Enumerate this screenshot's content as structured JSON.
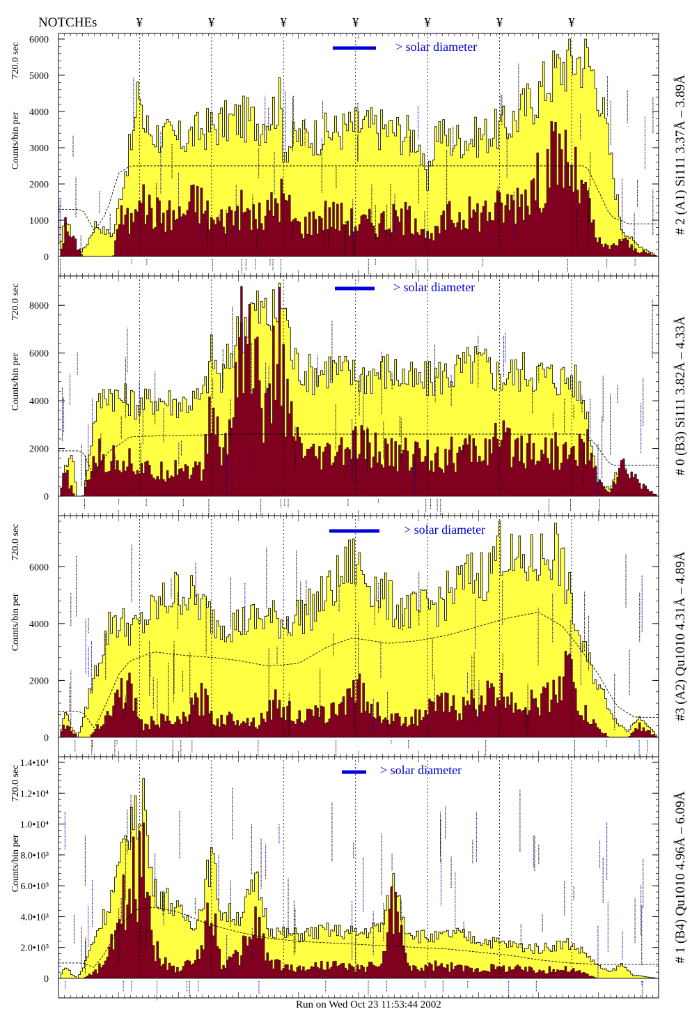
{
  "header": {
    "notches_label": "NOTCHEs",
    "notch_symbol": "¥"
  },
  "footer": {
    "run_text": "Run on Wed Oct 23 11:53:44 2002"
  },
  "colors": {
    "total_fill": "#ffff44",
    "lower_fill": "#800020",
    "legend_bar": "#0000dd",
    "legend_text": "#0000dd",
    "annotation_black": "#000000",
    "annotation_blue": "#0000aa",
    "annotation_purple": "#550055"
  },
  "chart_data": [
    {
      "type": "area",
      "ylabel": "Counts/bin per",
      "ylabel_time": "720.0 sec",
      "right_label": "# 2 (A1) Si111  3.37Å – 3.89Å",
      "legend_text": "> solar diameter",
      "ylim": [
        0,
        6000
      ],
      "yticks": [
        0,
        1000,
        2000,
        3000,
        4000,
        5000,
        6000
      ],
      "ytick_labels": [
        "0",
        "1000",
        "2000",
        "3000",
        "4000",
        "5000",
        "6000"
      ],
      "xlim": [
        0,
        1
      ],
      "notches": [
        0.135,
        0.255,
        0.375,
        0.495,
        0.615,
        0.735,
        0.855
      ],
      "series": [
        {
          "role": "total",
          "x": [
            0,
            0.01,
            0.02,
            0.03,
            0.045,
            0.06,
            0.075,
            0.09,
            0.11,
            0.125,
            0.135,
            0.14,
            0.16,
            0.2,
            0.24,
            0.26,
            0.3,
            0.34,
            0.37,
            0.375,
            0.4,
            0.45,
            0.5,
            0.55,
            0.6,
            0.615,
            0.63,
            0.65,
            0.7,
            0.75,
            0.8,
            0.83,
            0.85,
            0.88,
            0.9,
            0.92,
            0.94,
            0.96,
            0.98,
            1
          ],
          "y": [
            0,
            1100,
            600,
            0,
            300,
            900,
            700,
            600,
            2400,
            3400,
            4900,
            3600,
            3400,
            3200,
            3500,
            3600,
            3800,
            3700,
            4300,
            3000,
            3300,
            3400,
            3600,
            3500,
            3300,
            1800,
            3600,
            3200,
            3300,
            3600,
            4500,
            5100,
            5400,
            5500,
            4800,
            2900,
            800,
            400,
            200,
            0
          ]
        },
        {
          "role": "lower",
          "x": [
            0,
            0.01,
            0.025,
            0.04,
            0.06,
            0.08,
            0.09,
            0.1,
            0.12,
            0.135,
            0.14,
            0.16,
            0.2,
            0.23,
            0.26,
            0.3,
            0.34,
            0.37,
            0.4,
            0.45,
            0.5,
            0.55,
            0.6,
            0.62,
            0.65,
            0.7,
            0.75,
            0.78,
            0.8,
            0.82,
            0.84,
            0.86,
            0.88,
            0.9,
            0.92,
            0.94,
            0.96,
            1
          ],
          "y": [
            0,
            800,
            400,
            0,
            0,
            0,
            0,
            1100,
            900,
            2400,
            1400,
            1200,
            1100,
            1600,
            900,
            1300,
            1000,
            1700,
            800,
            1200,
            900,
            1000,
            1100,
            400,
            1100,
            1200,
            1400,
            1800,
            2000,
            2600,
            2900,
            2200,
            1600,
            400,
            200,
            500,
            200,
            0
          ]
        },
        {
          "role": "reference",
          "x": [
            0,
            0.02,
            0.04,
            0.06,
            0.08,
            0.1,
            0.12,
            0.14,
            0.3,
            0.5,
            0.7,
            0.84,
            0.88,
            0.9,
            0.92,
            0.95,
            0.98,
            1
          ],
          "y": [
            1300,
            1300,
            1300,
            700,
            1200,
            2300,
            2500,
            2500,
            2500,
            2500,
            2500,
            2500,
            2500,
            1800,
            1100,
            900,
            900,
            900
          ]
        }
      ]
    },
    {
      "type": "area",
      "ylabel": "Counts/bin per",
      "ylabel_time": "720.0 sec",
      "right_label": "# 0 (B3) Si111  3.82Å – 4.33Å",
      "legend_text": "> solar diameter",
      "ylim": [
        0,
        9000
      ],
      "yticks": [
        0,
        2000,
        4000,
        6000,
        8000
      ],
      "ytick_labels": [
        "0",
        "2000",
        "4000",
        "6000",
        "8000"
      ],
      "xlim": [
        0,
        1
      ],
      "notches": [
        0.135,
        0.255,
        0.375,
        0.495,
        0.615,
        0.735,
        0.855
      ],
      "series": [
        {
          "role": "total",
          "x": [
            0,
            0.01,
            0.02,
            0.03,
            0.04,
            0.06,
            0.08,
            0.1,
            0.12,
            0.135,
            0.16,
            0.2,
            0.24,
            0.255,
            0.27,
            0.3,
            0.32,
            0.36,
            0.375,
            0.39,
            0.42,
            0.45,
            0.5,
            0.55,
            0.6,
            0.63,
            0.66,
            0.7,
            0.74,
            0.78,
            0.82,
            0.86,
            0.88,
            0.9,
            0.92,
            0.94,
            0.96,
            1
          ],
          "y": [
            0,
            1200,
            2000,
            0,
            0,
            3500,
            4500,
            4100,
            4000,
            3800,
            4100,
            3900,
            4100,
            6000,
            4700,
            6900,
            7800,
            7500,
            8400,
            5700,
            5100,
            5400,
            5000,
            5300,
            4700,
            5000,
            5200,
            5600,
            5000,
            5300,
            5000,
            4900,
            3800,
            500,
            300,
            1500,
            200,
            0
          ]
        },
        {
          "role": "lower",
          "x": [
            0,
            0.01,
            0.025,
            0.04,
            0.06,
            0.08,
            0.1,
            0.12,
            0.135,
            0.16,
            0.2,
            0.24,
            0.255,
            0.27,
            0.29,
            0.3,
            0.32,
            0.35,
            0.36,
            0.37,
            0.38,
            0.4,
            0.42,
            0.45,
            0.5,
            0.55,
            0.6,
            0.65,
            0.7,
            0.74,
            0.8,
            0.84,
            0.86,
            0.88,
            0.9,
            0.92,
            0.94,
            1
          ],
          "y": [
            0,
            1000,
            0,
            0,
            1800,
            1400,
            1600,
            1500,
            1200,
            900,
            1300,
            1000,
            4000,
            1500,
            3200,
            7700,
            6000,
            3000,
            5500,
            6800,
            3500,
            2000,
            1500,
            1600,
            2100,
            1700,
            1800,
            1700,
            1900,
            2200,
            2000,
            1800,
            1700,
            2300,
            600,
            200,
            1200,
            0
          ]
        },
        {
          "role": "reference",
          "x": [
            0,
            0.02,
            0.04,
            0.06,
            0.08,
            0.12,
            0.3,
            0.5,
            0.7,
            0.86,
            0.88,
            0.9,
            0.92,
            0.95,
            1
          ],
          "y": [
            1900,
            1900,
            1900,
            800,
            1800,
            2500,
            2600,
            2600,
            2600,
            2600,
            2600,
            2000,
            1300,
            1300,
            1300
          ]
        }
      ]
    },
    {
      "type": "area",
      "ylabel": "Counts/bin per",
      "ylabel_time": "720.0 sec",
      "right_label": "#3 (A2) Qu1010  4.31Å – 4.89Å",
      "legend_text": "> solar diameter",
      "ylim": [
        0,
        7600
      ],
      "yticks": [
        0,
        2000,
        4000,
        6000
      ],
      "ytick_labels": [
        "0",
        "2000",
        "4000",
        "6000"
      ],
      "xlim": [
        0,
        1
      ],
      "notches": [
        0.135,
        0.255,
        0.375,
        0.495,
        0.615,
        0.735,
        0.855
      ],
      "series": [
        {
          "role": "total",
          "x": [
            0,
            0.01,
            0.02,
            0.03,
            0.04,
            0.05,
            0.07,
            0.09,
            0.1,
            0.13,
            0.16,
            0.2,
            0.23,
            0.26,
            0.3,
            0.34,
            0.38,
            0.42,
            0.46,
            0.49,
            0.52,
            0.56,
            0.6,
            0.64,
            0.68,
            0.72,
            0.735,
            0.76,
            0.8,
            0.83,
            0.85,
            0.87,
            0.9,
            0.93,
            0.95,
            0.97,
            1
          ],
          "y": [
            0,
            900,
            400,
            0,
            600,
            1500,
            3000,
            4300,
            4000,
            3800,
            4500,
            5200,
            4800,
            4100,
            4000,
            4200,
            4100,
            4500,
            5300,
            6200,
            5500,
            4600,
            4400,
            4800,
            5600,
            5800,
            7000,
            6000,
            6200,
            6700,
            5200,
            3400,
            1900,
            600,
            200,
            800,
            0
          ]
        },
        {
          "role": "lower",
          "x": [
            0,
            0.01,
            0.03,
            0.05,
            0.07,
            0.09,
            0.1,
            0.12,
            0.14,
            0.16,
            0.2,
            0.24,
            0.26,
            0.3,
            0.33,
            0.36,
            0.4,
            0.44,
            0.47,
            0.49,
            0.52,
            0.56,
            0.6,
            0.64,
            0.67,
            0.7,
            0.74,
            0.78,
            0.82,
            0.85,
            0.87,
            0.9,
            0.92,
            0.95,
            0.97,
            1
          ],
          "y": [
            0,
            500,
            0,
            0,
            600,
            1000,
            1700,
            1600,
            300,
            600,
            500,
            1400,
            600,
            700,
            500,
            1200,
            700,
            800,
            1000,
            2000,
            1000,
            600,
            700,
            1200,
            1000,
            1300,
            1600,
            1100,
            1400,
            2500,
            1000,
            300,
            0,
            0,
            400,
            0
          ]
        },
        {
          "role": "reference",
          "x": [
            0,
            0.02,
            0.04,
            0.06,
            0.08,
            0.1,
            0.12,
            0.16,
            0.2,
            0.26,
            0.3,
            0.35,
            0.4,
            0.45,
            0.49,
            0.55,
            0.6,
            0.65,
            0.7,
            0.75,
            0.8,
            0.84,
            0.87,
            0.9,
            0.93,
            0.96,
            1
          ],
          "y": [
            900,
            900,
            900,
            300,
            1200,
            2200,
            2700,
            3000,
            2900,
            2800,
            2700,
            2500,
            2600,
            3200,
            3500,
            3300,
            3400,
            3600,
            3900,
            4200,
            4400,
            3900,
            3100,
            2200,
            1100,
            700,
            700
          ]
        }
      ]
    },
    {
      "type": "area",
      "ylabel": "Counts/bin per",
      "ylabel_time": "720.0 sec",
      "right_label": "# 1 (B4) Qu1010 4.96Å – 6.09Å",
      "legend_text": "> solar diameter",
      "ylim": [
        0,
        14000
      ],
      "yticks": [
        0,
        2000,
        4000,
        6000,
        8000,
        10000,
        12000,
        14000
      ],
      "ytick_labels": [
        "0",
        "2.0•10³",
        "4.0•10³",
        "6.0•10³",
        "8.0•10³",
        "1.0•10⁴",
        "1.2•10⁴",
        "1.4•10⁴"
      ],
      "xlim": [
        0,
        1
      ],
      "notches": [
        0.135,
        0.255,
        0.375,
        0.495,
        0.615,
        0.735,
        0.855
      ],
      "series": [
        {
          "role": "total",
          "x": [
            0,
            0.01,
            0.02,
            0.03,
            0.04,
            0.06,
            0.08,
            0.1,
            0.12,
            0.13,
            0.14,
            0.15,
            0.16,
            0.18,
            0.2,
            0.23,
            0.255,
            0.27,
            0.3,
            0.33,
            0.35,
            0.37,
            0.4,
            0.45,
            0.5,
            0.54,
            0.56,
            0.58,
            0.6,
            0.63,
            0.66,
            0.7,
            0.75,
            0.8,
            0.85,
            0.88,
            0.9,
            0.92,
            0.94,
            0.96,
            1
          ],
          "y": [
            0,
            800,
            300,
            0,
            700,
            2800,
            4500,
            7000,
            10500,
            10000,
            12600,
            7500,
            5600,
            5200,
            4200,
            3600,
            7900,
            4300,
            4000,
            6200,
            3300,
            2900,
            2800,
            3100,
            2900,
            3400,
            6300,
            3200,
            2800,
            2600,
            2900,
            2500,
            2200,
            1900,
            2300,
            1600,
            800,
            400,
            900,
            200,
            0
          ]
        },
        {
          "role": "lower",
          "x": [
            0,
            0.02,
            0.04,
            0.06,
            0.08,
            0.1,
            0.12,
            0.13,
            0.14,
            0.15,
            0.16,
            0.18,
            0.2,
            0.23,
            0.255,
            0.27,
            0.3,
            0.33,
            0.35,
            0.37,
            0.4,
            0.45,
            0.5,
            0.54,
            0.56,
            0.58,
            0.6,
            0.63,
            0.66,
            0.7,
            0.75,
            0.8,
            0.85,
            0.88,
            0.9,
            0.92,
            1
          ],
          "y": [
            0,
            0,
            0,
            400,
            1200,
            3500,
            6800,
            5800,
            11000,
            5000,
            2000,
            800,
            600,
            1200,
            5000,
            900,
            1400,
            3800,
            1100,
            800,
            600,
            900,
            600,
            1000,
            5500,
            900,
            600,
            800,
            700,
            600,
            700,
            500,
            600,
            300,
            0,
            0,
            0
          ]
        },
        {
          "role": "reference",
          "x": [
            0,
            0.02,
            0.04,
            0.06,
            0.08,
            0.1,
            0.13,
            0.16,
            0.2,
            0.25,
            0.3,
            0.35,
            0.4,
            0.45,
            0.5,
            0.55,
            0.6,
            0.65,
            0.7,
            0.75,
            0.8,
            0.85,
            0.9,
            0.95,
            1
          ],
          "y": [
            1000,
            1000,
            1000,
            700,
            1800,
            3300,
            4500,
            4600,
            4300,
            3500,
            3000,
            2600,
            2400,
            2300,
            2200,
            2100,
            2000,
            1900,
            1700,
            1500,
            1200,
            1000,
            900,
            900,
            900
          ]
        }
      ]
    }
  ]
}
